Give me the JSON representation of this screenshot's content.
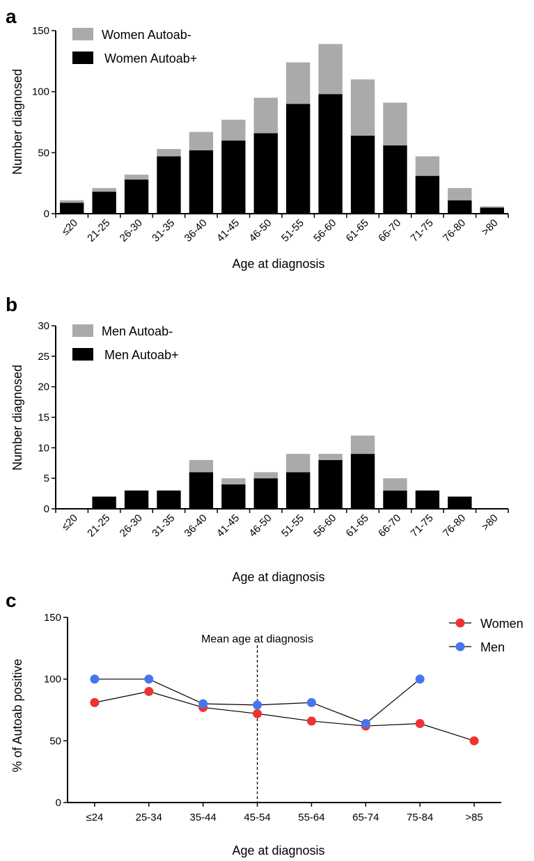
{
  "chart_data": [
    {
      "panel": "a",
      "type": "bar",
      "stacked": true,
      "categories": [
        "≤20",
        "21-25",
        "26-30",
        "31-35",
        "36-40",
        "41-45",
        "46-50",
        "51-55",
        "56-60",
        "61-65",
        "66-70",
        "71-75",
        "76-80",
        ">80"
      ],
      "series": [
        {
          "name": "Women Autoab+",
          "color": "#000000",
          "values": [
            9,
            18,
            28,
            47,
            52,
            60,
            66,
            90,
            98,
            64,
            56,
            31,
            11,
            5
          ]
        },
        {
          "name": "Women Autoab-",
          "color": "#aaaaaa",
          "values": [
            2,
            3,
            4,
            6,
            15,
            17,
            29,
            34,
            41,
            46,
            35,
            16,
            10,
            1
          ]
        }
      ],
      "legend_order": [
        "Women Autoab-",
        "Women Autoab+"
      ],
      "xlabel": "Age at diagnosis",
      "ylabel": "Number diagnosed",
      "ylim": [
        0,
        150
      ],
      "yticks": [
        0,
        50,
        100,
        150
      ],
      "legend": "top-left",
      "grid": false
    },
    {
      "panel": "b",
      "type": "bar",
      "stacked": true,
      "categories": [
        "≤20",
        "21-25",
        "26-30",
        "31-35",
        "36-40",
        "41-45",
        "46-50",
        "51-55",
        "56-60",
        "61-65",
        "66-70",
        "71-75",
        "76-80",
        ">80"
      ],
      "series": [
        {
          "name": "Men Autoab+",
          "color": "#000000",
          "values": [
            0,
            2,
            3,
            3,
            6,
            4,
            5,
            6,
            8,
            9,
            3,
            3,
            2,
            0
          ]
        },
        {
          "name": "Men Autoab-",
          "color": "#aaaaaa",
          "values": [
            0,
            0,
            0,
            0,
            2,
            1,
            1,
            3,
            1,
            3,
            2,
            0,
            0,
            0
          ]
        }
      ],
      "legend_order": [
        "Men Autoab-",
        "Men Autoab+"
      ],
      "xlabel": "Age at diagnosis",
      "ylabel": "Number diagnosed",
      "ylim": [
        0,
        30
      ],
      "yticks": [
        0,
        5,
        10,
        15,
        20,
        25,
        30
      ],
      "legend": "top-left",
      "grid": false
    },
    {
      "panel": "c",
      "type": "line",
      "categories": [
        "≤24",
        "25-34",
        "35-44",
        "45-54",
        "55-64",
        "65-74",
        "75-84",
        ">85"
      ],
      "series": [
        {
          "name": "Women",
          "color": "#ee3333",
          "values": [
            81,
            90,
            77,
            72,
            66,
            62,
            64,
            50
          ]
        },
        {
          "name": "Men",
          "color": "#4477ee",
          "values": [
            100,
            100,
            80,
            79,
            81,
            64,
            100,
            null
          ]
        }
      ],
      "xlabel": "Age at diagnosis",
      "ylabel": "% of Autoab positive",
      "ylim": [
        0,
        150
      ],
      "yticks": [
        0,
        50,
        100,
        150
      ],
      "annotation": {
        "text": "Mean age at diagnosis",
        "at_category": "45-54"
      },
      "legend": "top-right",
      "grid": false
    }
  ]
}
